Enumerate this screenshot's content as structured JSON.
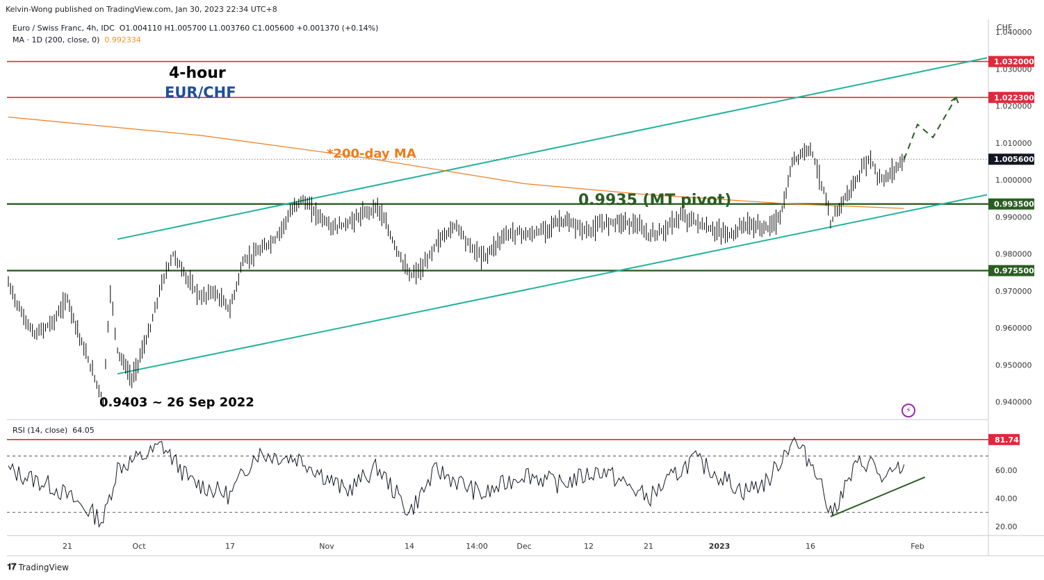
{
  "publisher": "Kelvin-Wong published on TradingView.com, Jan 30, 2023 22:34 UTC+8",
  "legend": {
    "symbol": "Euro / Swiss Franc, 4h, IDC",
    "ohlc": "O1.004110  H1.005700  L1.003760  C1.005600  +0.001370 (+0.14%)",
    "ma_label": "MA · 1D (200, close, 0)",
    "ma_value": "0.992334",
    "rsi_label": "RSI (14, close)",
    "rsi_value": "64.05"
  },
  "annotations": {
    "title_line1": "4-hour",
    "title_line2": "EUR/CHF",
    "ma_note": "*200-day MA",
    "pivot_note": "0.9935 (MT pivot)",
    "low_note": "0.9403 ~ 26 Sep 2022"
  },
  "price_axis": {
    "currency": "CHF",
    "ticks": [
      "1.040000",
      "1.030000",
      "1.020000",
      "1.010000",
      "1.000000",
      "0.990000",
      "0.980000",
      "0.970000",
      "0.960000",
      "0.950000",
      "0.940000"
    ],
    "labels": [
      "1.032000",
      "1.022300",
      "1.005600",
      "0.993500",
      "0.975500"
    ]
  },
  "rsi_axis": {
    "ticks": [
      "60.00",
      "40.00",
      "20.00"
    ],
    "label": "81.74"
  },
  "time_axis": {
    "ticks": [
      "21",
      "Oct",
      "17",
      "Nov",
      "14",
      "14:00",
      "Dec",
      "12",
      "21",
      "2023",
      "16",
      "Feb"
    ]
  },
  "footer": {
    "logo": "𝟏𝟕",
    "name": "TradingView"
  },
  "colors": {
    "up": "#000000",
    "resistance": "#e0283c",
    "support": "#2a5d22",
    "channel": "#1fb39a",
    "ma": "#f07b1a",
    "rsi": "#131722",
    "label_dark": "#131722"
  },
  "chart_data": {
    "type": "line",
    "title": "4-hour EUR/CHF",
    "ylim": [
      0.936,
      1.043
    ],
    "price_path": [
      {
        "date": "2022-09-12",
        "y": 0.972
      },
      {
        "date": "2022-09-14",
        "y": 0.964
      },
      {
        "date": "2022-09-16",
        "y": 0.958
      },
      {
        "date": "2022-09-19",
        "y": 0.962
      },
      {
        "date": "2022-09-21",
        "y": 0.968
      },
      {
        "date": "2022-09-23",
        "y": 0.956
      },
      {
        "date": "2022-09-26",
        "y": 0.9403
      },
      {
        "date": "2022-09-27",
        "y": 0.97
      },
      {
        "date": "2022-09-28",
        "y": 0.954
      },
      {
        "date": "2022-09-30",
        "y": 0.946
      },
      {
        "date": "2022-10-03",
        "y": 0.96
      },
      {
        "date": "2022-10-05",
        "y": 0.972
      },
      {
        "date": "2022-10-07",
        "y": 0.98
      },
      {
        "date": "2022-10-10",
        "y": 0.972
      },
      {
        "date": "2022-10-12",
        "y": 0.968
      },
      {
        "date": "2022-10-14",
        "y": 0.97
      },
      {
        "date": "2022-10-17",
        "y": 0.965
      },
      {
        "date": "2022-10-19",
        "y": 0.978
      },
      {
        "date": "2022-10-21",
        "y": 0.98
      },
      {
        "date": "2022-10-24",
        "y": 0.984
      },
      {
        "date": "2022-10-26",
        "y": 0.99
      },
      {
        "date": "2022-10-28",
        "y": 0.995
      },
      {
        "date": "2022-10-31",
        "y": 0.99
      },
      {
        "date": "2022-11-02",
        "y": 0.987
      },
      {
        "date": "2022-11-04",
        "y": 0.988
      },
      {
        "date": "2022-11-07",
        "y": 0.991
      },
      {
        "date": "2022-11-09",
        "y": 0.993
      },
      {
        "date": "2022-11-11",
        "y": 0.985
      },
      {
        "date": "2022-11-14",
        "y": 0.974
      },
      {
        "date": "2022-11-16",
        "y": 0.976
      },
      {
        "date": "2022-11-18",
        "y": 0.983
      },
      {
        "date": "2022-11-21",
        "y": 0.988
      },
      {
        "date": "2022-11-23",
        "y": 0.982
      },
      {
        "date": "2022-11-25",
        "y": 0.979
      },
      {
        "date": "2022-11-28",
        "y": 0.985
      },
      {
        "date": "2022-11-30",
        "y": 0.986
      },
      {
        "date": "2022-12-02",
        "y": 0.985
      },
      {
        "date": "2022-12-05",
        "y": 0.987
      },
      {
        "date": "2022-12-07",
        "y": 0.989
      },
      {
        "date": "2022-12-09",
        "y": 0.988
      },
      {
        "date": "2022-12-12",
        "y": 0.986
      },
      {
        "date": "2022-12-14",
        "y": 0.988
      },
      {
        "date": "2022-12-16",
        "y": 0.989
      },
      {
        "date": "2022-12-19",
        "y": 0.988
      },
      {
        "date": "2022-12-21",
        "y": 0.985
      },
      {
        "date": "2022-12-23",
        "y": 0.986
      },
      {
        "date": "2022-12-26",
        "y": 0.99
      },
      {
        "date": "2022-12-28",
        "y": 0.989
      },
      {
        "date": "2022-12-30",
        "y": 0.987
      },
      {
        "date": "2023-01-03",
        "y": 0.985
      },
      {
        "date": "2023-01-05",
        "y": 0.988
      },
      {
        "date": "2023-01-09",
        "y": 0.987
      },
      {
        "date": "2023-01-11",
        "y": 0.99
      },
      {
        "date": "2023-01-12",
        "y": 0.996
      },
      {
        "date": "2023-01-13",
        "y": 1.005
      },
      {
        "date": "2023-01-16",
        "y": 1.009
      },
      {
        "date": "2023-01-17",
        "y": 1.003
      },
      {
        "date": "2023-01-18",
        "y": 0.997
      },
      {
        "date": "2023-01-19",
        "y": 0.988
      },
      {
        "date": "2023-01-20",
        "y": 0.992
      },
      {
        "date": "2023-01-23",
        "y": 1.0
      },
      {
        "date": "2023-01-24",
        "y": 1.004
      },
      {
        "date": "2023-01-25",
        "y": 1.006
      },
      {
        "date": "2023-01-26",
        "y": 1.001
      },
      {
        "date": "2023-01-27",
        "y": 1.0
      },
      {
        "date": "2023-01-30",
        "y": 1.0056
      }
    ],
    "ma_200d": [
      {
        "date": "2022-09-12",
        "y": 1.017
      },
      {
        "date": "2022-10-12",
        "y": 1.012
      },
      {
        "date": "2022-11-07",
        "y": 1.006
      },
      {
        "date": "2022-12-01",
        "y": 0.999
      },
      {
        "date": "2022-12-21",
        "y": 0.996
      },
      {
        "date": "2023-01-13",
        "y": 0.9935
      },
      {
        "date": "2023-01-30",
        "y": 0.9923
      }
    ],
    "projection": [
      {
        "date": "2023-01-30",
        "y": 1.0056
      },
      {
        "date": "2023-02-01",
        "y": 1.015
      },
      {
        "date": "2023-02-03",
        "y": 1.0115
      },
      {
        "date": "2023-02-06",
        "y": 1.0223
      }
    ],
    "levels": [
      {
        "name": "resistance",
        "y": 1.032
      },
      {
        "name": "resistance",
        "y": 1.0223
      },
      {
        "name": "MT pivot",
        "y": 0.9935
      },
      {
        "name": "support",
        "y": 0.9755
      }
    ],
    "channel": [
      {
        "name": "upper",
        "points": [
          {
            "date": "2022-09-28",
            "y": 0.984
          },
          {
            "date": "2023-02-10",
            "y": 1.033
          }
        ]
      },
      {
        "name": "lower",
        "points": [
          {
            "date": "2022-09-28",
            "y": 0.9476
          },
          {
            "date": "2023-02-10",
            "y": 0.996
          }
        ]
      }
    ],
    "rsi": {
      "ylim": [
        14,
        93
      ],
      "levels": [
        70,
        30
      ],
      "marked_value": 81.74,
      "path": [
        {
          "date": "2022-09-12",
          "y": 60
        },
        {
          "date": "2022-09-19",
          "y": 48
        },
        {
          "date": "2022-09-26",
          "y": 24
        },
        {
          "date": "2022-09-28",
          "y": 62
        },
        {
          "date": "2022-10-03",
          "y": 72
        },
        {
          "date": "2022-10-05",
          "y": 78
        },
        {
          "date": "2022-10-10",
          "y": 52
        },
        {
          "date": "2022-10-17",
          "y": 42
        },
        {
          "date": "2022-10-21",
          "y": 72
        },
        {
          "date": "2022-10-28",
          "y": 68
        },
        {
          "date": "2022-11-04",
          "y": 45
        },
        {
          "date": "2022-11-09",
          "y": 62
        },
        {
          "date": "2022-11-14",
          "y": 30
        },
        {
          "date": "2022-11-18",
          "y": 60
        },
        {
          "date": "2022-11-25",
          "y": 42
        },
        {
          "date": "2022-12-01",
          "y": 58
        },
        {
          "date": "2022-12-07",
          "y": 50
        },
        {
          "date": "2022-12-14",
          "y": 60
        },
        {
          "date": "2022-12-21",
          "y": 40
        },
        {
          "date": "2022-12-28",
          "y": 68
        },
        {
          "date": "2023-01-05",
          "y": 45
        },
        {
          "date": "2023-01-09",
          "y": 52
        },
        {
          "date": "2023-01-13",
          "y": 81.74
        },
        {
          "date": "2023-01-17",
          "y": 60
        },
        {
          "date": "2023-01-19",
          "y": 28
        },
        {
          "date": "2023-01-23",
          "y": 64
        },
        {
          "date": "2023-01-25",
          "y": 66
        },
        {
          "date": "2023-01-27",
          "y": 52
        },
        {
          "date": "2023-01-30",
          "y": 64.05
        }
      ],
      "trendline": [
        {
          "date": "2023-01-19",
          "y": 27
        },
        {
          "date": "2023-01-30",
          "y": 55
        }
      ]
    }
  }
}
